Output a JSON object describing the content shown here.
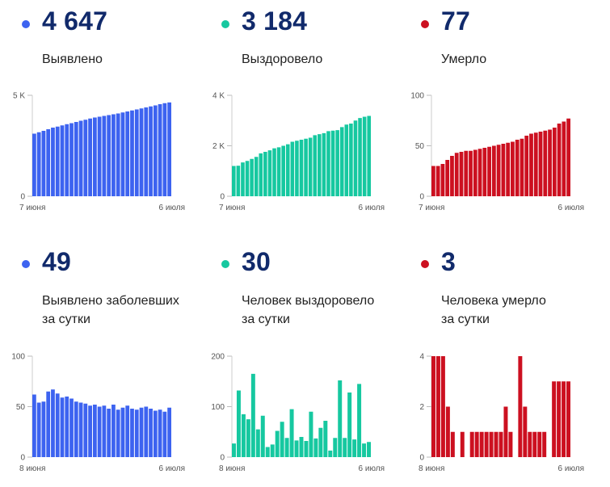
{
  "colors": {
    "blue": "#3d63f0",
    "green": "#16c8a0",
    "red": "#cc1020",
    "number": "#112a6b"
  },
  "panels": [
    {
      "id": "detected-total",
      "number": "4 647",
      "label1": "Выявлено",
      "label2": "",
      "color": "blue",
      "chart_data": {
        "type": "bar",
        "x_start_label": "7 июня",
        "x_end_label": "6 июля",
        "ylim": [
          0,
          5000
        ],
        "yticks": [
          0,
          5000
        ],
        "ytick_labels": [
          "0",
          "5 K"
        ],
        "values": [
          3100,
          3170,
          3240,
          3320,
          3400,
          3450,
          3510,
          3570,
          3620,
          3680,
          3740,
          3790,
          3850,
          3900,
          3940,
          3980,
          4020,
          4060,
          4100,
          4150,
          4200,
          4250,
          4300,
          4350,
          4400,
          4450,
          4500,
          4560,
          4610,
          4647
        ]
      }
    },
    {
      "id": "recovered-total",
      "number": "3 184",
      "label1": "Выздоровело",
      "label2": "",
      "color": "green",
      "chart_data": {
        "type": "bar",
        "x_start_label": "7 июня",
        "x_end_label": "6 июля",
        "ylim": [
          0,
          4000
        ],
        "yticks": [
          0,
          2000,
          4000
        ],
        "ytick_labels": [
          "0",
          "2 K",
          "4 K"
        ],
        "values": [
          1200,
          1210,
          1340,
          1400,
          1480,
          1560,
          1700,
          1760,
          1820,
          1900,
          1940,
          2000,
          2060,
          2160,
          2200,
          2240,
          2280,
          2320,
          2420,
          2460,
          2500,
          2580,
          2600,
          2620,
          2740,
          2840,
          2880,
          3000,
          3100,
          3150,
          3184
        ]
      }
    },
    {
      "id": "died-total",
      "number": "77",
      "label1": "Умерло",
      "label2": "",
      "color": "red",
      "chart_data": {
        "type": "bar",
        "x_start_label": "7 июня",
        "x_end_label": "6 июля",
        "ylim": [
          0,
          100
        ],
        "yticks": [
          0,
          50,
          100
        ],
        "ytick_labels": [
          "0",
          "50",
          "100"
        ],
        "values": [
          30,
          30,
          32,
          36,
          40,
          43,
          44,
          45,
          45,
          46,
          47,
          48,
          49,
          50,
          51,
          52,
          53,
          54,
          56,
          57,
          60,
          62,
          63,
          64,
          65,
          66,
          68,
          72,
          74,
          77
        ]
      }
    },
    {
      "id": "detected-daily",
      "number": "49",
      "label1": "Выявлено заболевших",
      "label2": "за сутки",
      "color": "blue",
      "chart_data": {
        "type": "bar",
        "x_start_label": "8 июня",
        "x_end_label": "6 июля",
        "ylim": [
          0,
          100
        ],
        "yticks": [
          0,
          50,
          100
        ],
        "ytick_labels": [
          "0",
          "50",
          "100"
        ],
        "values": [
          62,
          54,
          55,
          65,
          67,
          63,
          59,
          60,
          58,
          55,
          54,
          53,
          51,
          52,
          50,
          51,
          48,
          52,
          47,
          49,
          51,
          48,
          47,
          49,
          50,
          48,
          46,
          47,
          45,
          49
        ]
      }
    },
    {
      "id": "recovered-daily",
      "number": "30",
      "label1": "Человек выздоровело",
      "label2": "за сутки",
      "color": "green",
      "chart_data": {
        "type": "bar",
        "x_start_label": "8 июня",
        "x_end_label": "6 июля",
        "ylim": [
          0,
          200
        ],
        "yticks": [
          0,
          100,
          200
        ],
        "ytick_labels": [
          "0",
          "100",
          "200"
        ],
        "values": [
          27,
          132,
          85,
          75,
          165,
          55,
          82,
          20,
          25,
          52,
          70,
          38,
          95,
          33,
          40,
          32,
          90,
          37,
          58,
          72,
          13,
          38,
          152,
          38,
          128,
          35,
          145,
          27,
          30
        ]
      }
    },
    {
      "id": "died-daily",
      "number": "3",
      "label1": "Человека умерло",
      "label2": "за сутки",
      "color": "red",
      "chart_data": {
        "type": "bar",
        "x_start_label": "8 июня",
        "x_end_label": "6 июля",
        "ylim": [
          0,
          4
        ],
        "yticks": [
          0,
          2,
          4
        ],
        "ytick_labels": [
          "0",
          "2",
          "4"
        ],
        "values": [
          4,
          4,
          4,
          2,
          1,
          0,
          1,
          0,
          1,
          1,
          1,
          1,
          1,
          1,
          1,
          2,
          1,
          0,
          4,
          2,
          1,
          1,
          1,
          1,
          0,
          3,
          3,
          3,
          3
        ]
      }
    }
  ]
}
